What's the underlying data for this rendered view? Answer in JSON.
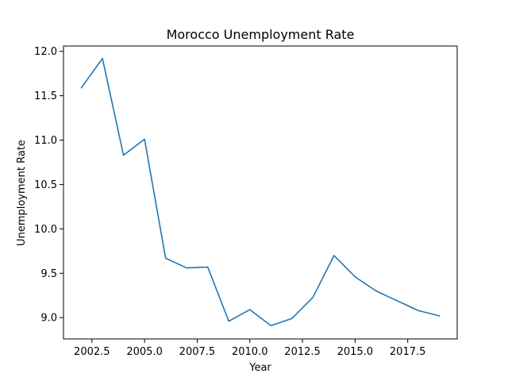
{
  "chart_data": {
    "type": "line",
    "title": "Morocco Unemployment Rate",
    "xlabel": "Year",
    "ylabel": "Unemployment Rate",
    "xlim": [
      2001.15,
      2019.85
    ],
    "ylim": [
      8.76,
      12.06
    ],
    "xticks": [
      2002.5,
      2005.0,
      2007.5,
      2010.0,
      2012.5,
      2015.0,
      2017.5
    ],
    "xtick_labels": [
      "2002.5",
      "2005.0",
      "2007.5",
      "2010.0",
      "2012.5",
      "2015.0",
      "2017.5"
    ],
    "yticks": [
      9.0,
      9.5,
      10.0,
      10.5,
      11.0,
      11.5,
      12.0
    ],
    "ytick_labels": [
      "9.0",
      "9.5",
      "10.0",
      "10.5",
      "11.0",
      "11.5",
      "12.0"
    ],
    "grid": false,
    "line_color": "#1f77b4",
    "x": [
      2002,
      2003,
      2004,
      2005,
      2006,
      2007,
      2008,
      2009,
      2010,
      2011,
      2012,
      2013,
      2014,
      2015,
      2016,
      2017,
      2018,
      2019
    ],
    "series": [
      {
        "values": [
          11.59,
          11.92,
          10.83,
          11.01,
          9.67,
          9.56,
          9.57,
          8.96,
          9.09,
          8.91,
          8.99,
          9.23,
          9.7,
          9.46,
          9.3,
          9.19,
          9.08,
          9.02
        ]
      }
    ]
  }
}
